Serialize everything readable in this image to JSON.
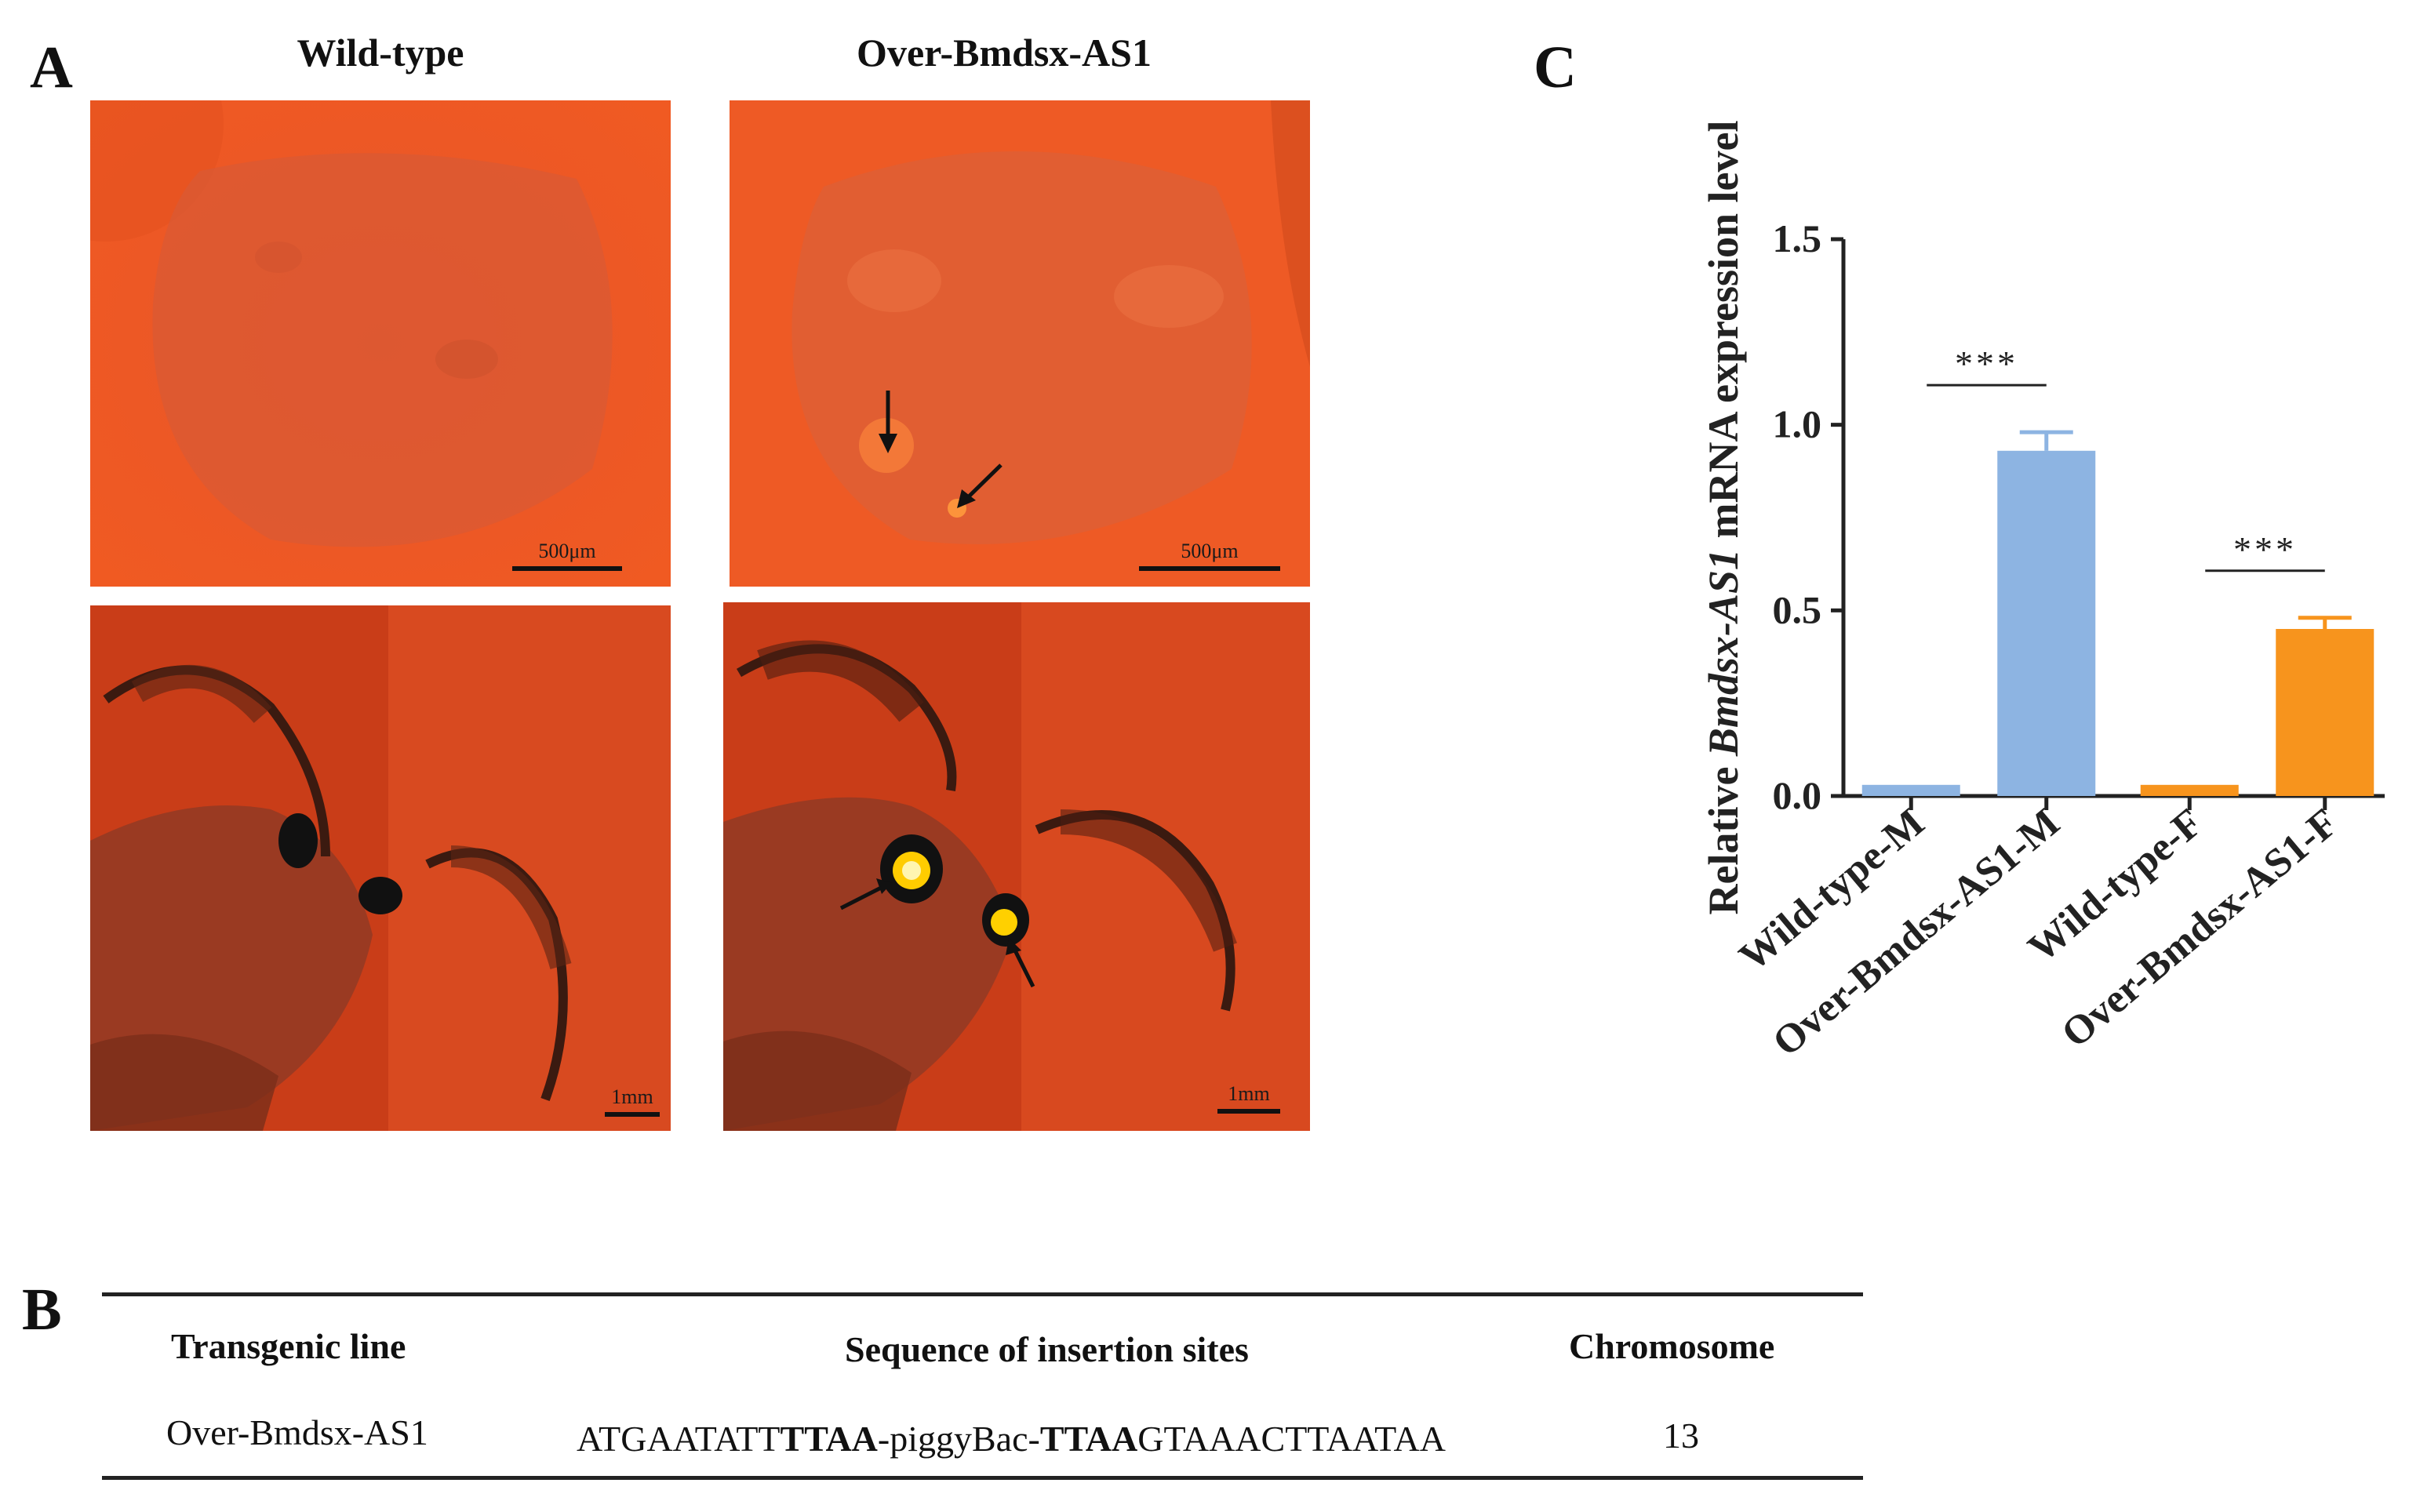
{
  "panelA": {
    "letter": "A",
    "col_left_title": "Wild-type",
    "col_right_title": "Over-Bmdsx-AS1",
    "scale_egg": "500μm",
    "scale_moth": "1mm"
  },
  "panelB": {
    "letter": "B",
    "headers": [
      "Transgenic line",
      "Sequence of insertion sites",
      "Chromosome"
    ],
    "row": {
      "line": "Over-Bmdsx-AS1",
      "seq_part1": "ATGAATATT",
      "seq_part2": "TTAA",
      "seq_part3": "-piggyBac-",
      "seq_part4": "TTAA",
      "seq_part5": "GTAAACTTAATAA",
      "chromosome": "13"
    }
  },
  "panelC": {
    "letter": "C",
    "significance": "***",
    "colors": {
      "blue": "#8db4e2",
      "orange": "#f7941d",
      "axis": "#222222"
    }
  },
  "chart_data": {
    "type": "bar",
    "categories": [
      "Wild-type-M",
      "Over-Bmdsx-AS1-M",
      "Wild-type-F",
      "Over-Bmdsx-AS1-F"
    ],
    "values": [
      0.03,
      0.93,
      0.03,
      0.45
    ],
    "errors": [
      0,
      0.05,
      0,
      0.03
    ],
    "bar_colors": [
      "#8db4e2",
      "#8db4e2",
      "#f7941d",
      "#f7941d"
    ],
    "ylabel_parts": [
      "Relative ",
      "Bmdsx-AS1",
      " mRNA expression level"
    ],
    "ylim": [
      0,
      1.5
    ],
    "yticks": [
      "0.0",
      "0.5",
      "1.0",
      "1.5"
    ],
    "significance": [
      {
        "from": 0,
        "to": 1,
        "label": "***"
      },
      {
        "from": 2,
        "to": 3,
        "label": "***"
      }
    ]
  }
}
